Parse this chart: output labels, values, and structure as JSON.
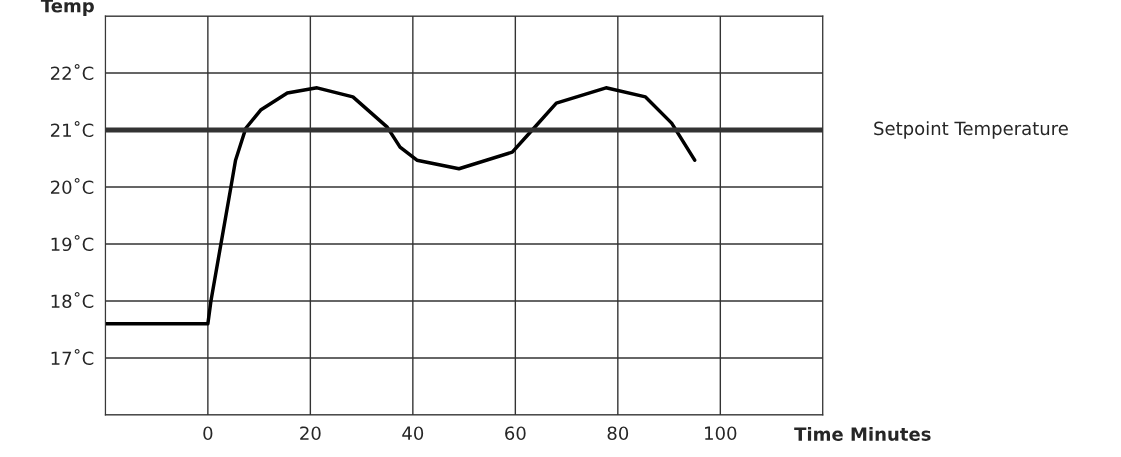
{
  "chart_data": {
    "type": "line",
    "ylabel": "Temp",
    "xlabel": "Time Minutes",
    "series": [
      {
        "color": "#000000",
        "x": [
          -20,
          0,
          0.6,
          4.5,
          5.4,
          7.4,
          10.3,
          15.5,
          21.3,
          28.3,
          35,
          37.5,
          40.8,
          49,
          59.4,
          63.3,
          68,
          77.7,
          85.4,
          90.5,
          95
        ],
        "values": [
          17.6,
          17.6,
          18.0,
          20.0,
          20.47,
          21.03,
          21.35,
          21.65,
          21.74,
          21.58,
          21.05,
          20.7,
          20.47,
          20.32,
          20.61,
          21.0,
          21.47,
          21.74,
          21.58,
          21.12,
          20.47
        ]
      }
    ],
    "xlim": [
      -20,
      120
    ],
    "xticks": [
      {
        "value": -20,
        "label": null
      },
      0,
      20,
      40,
      60,
      80,
      100,
      {
        "value": 120,
        "label": null
      }
    ],
    "ylim": [
      16,
      23
    ],
    "yticks": [
      {
        "value": 16,
        "label": null
      },
      {
        "value": 17,
        "label": "17˚C"
      },
      {
        "value": 18,
        "label": "18˚C"
      },
      {
        "value": 19,
        "label": "19˚C"
      },
      {
        "value": 20,
        "label": "20˚C"
      },
      {
        "value": 21,
        "label": "21˚C"
      },
      {
        "value": 22,
        "label": "22˚C"
      },
      {
        "value": 23,
        "label": null
      }
    ],
    "ref_lines": [
      {
        "axis": "y",
        "value": 21,
        "label": "Setpoint Temperature",
        "color": "#333333"
      }
    ],
    "grid": true,
    "legend": false,
    "marker": "none",
    "line_style": "solid"
  }
}
